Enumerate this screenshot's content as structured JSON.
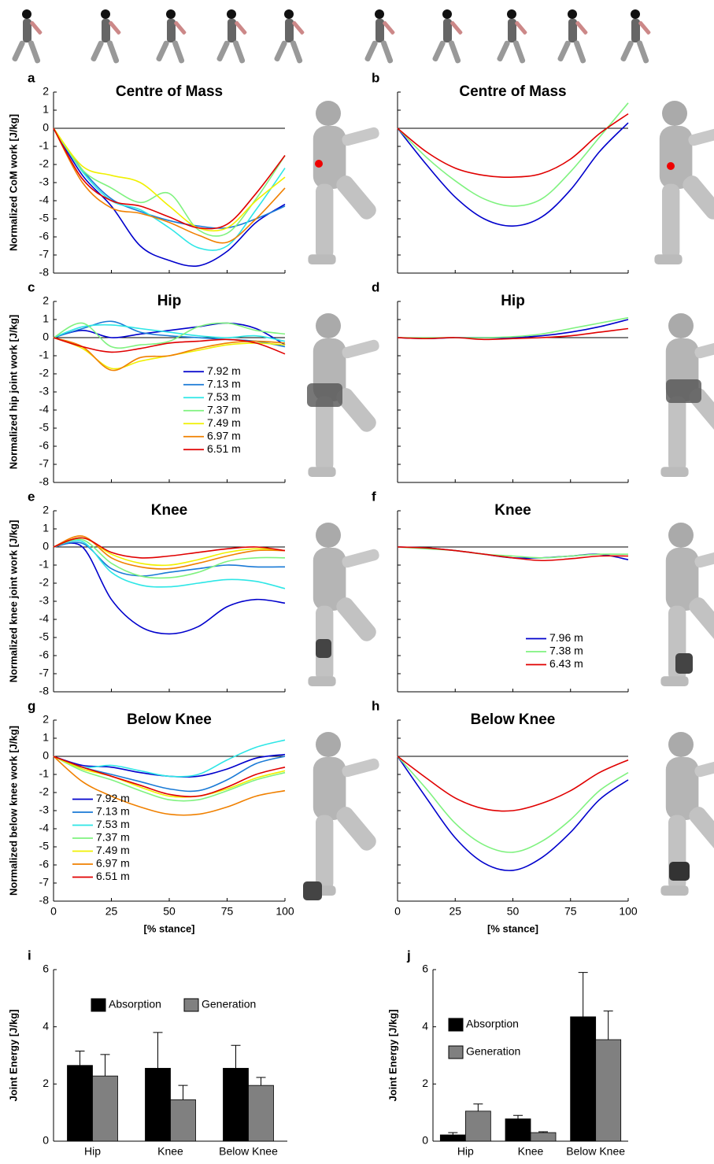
{
  "chart_data": [
    {
      "type": "line",
      "label": "a",
      "title": "Centre of Mass",
      "ylabel": "Normalized CoM work [J/kg]",
      "x": [
        0,
        12.5,
        25,
        37.5,
        50,
        62.5,
        75,
        87.5,
        100
      ],
      "xlim": [
        0,
        100
      ],
      "xticks": [
        0,
        25,
        50,
        75,
        100
      ],
      "xtick_labels": false,
      "ylim": [
        -8,
        2
      ],
      "yticks": [
        -8,
        -7,
        -6,
        -5,
        -4,
        -3,
        -2,
        -1,
        0,
        1,
        2
      ],
      "zero_line": true,
      "series": [
        {
          "color": "#0000cc",
          "values": [
            0,
            -2.6,
            -4.3,
            -6.5,
            -7.3,
            -7.6,
            -6.8,
            -5.2,
            -4.2
          ]
        },
        {
          "color": "#1a7ad6",
          "values": [
            0,
            -2.3,
            -3.9,
            -4.6,
            -5.1,
            -5.4,
            -5.5,
            -5.0,
            -4.3
          ]
        },
        {
          "color": "#2ee6e6",
          "values": [
            0,
            -2.4,
            -4.0,
            -4.5,
            -5.5,
            -6.6,
            -6.5,
            -4.5,
            -2.2
          ]
        },
        {
          "color": "#7ff27f",
          "values": [
            0,
            -2.3,
            -3.3,
            -4.1,
            -3.6,
            -5.6,
            -5.8,
            -3.9,
            -1.5
          ]
        },
        {
          "color": "#f0f000",
          "values": [
            0,
            -2.1,
            -2.6,
            -3.0,
            -4.3,
            -5.5,
            -5.5,
            -4.0,
            -2.7
          ]
        },
        {
          "color": "#f08000",
          "values": [
            0,
            -3.0,
            -4.4,
            -4.7,
            -5.2,
            -5.9,
            -6.3,
            -5.0,
            -3.3
          ]
        },
        {
          "color": "#e00000",
          "values": [
            0,
            -2.8,
            -4.0,
            -4.3,
            -4.9,
            -5.5,
            -5.3,
            -3.6,
            -1.5
          ]
        }
      ]
    },
    {
      "type": "line",
      "label": "b",
      "title": "Centre of Mass",
      "x": [
        0,
        12.5,
        25,
        37.5,
        50,
        62.5,
        75,
        87.5,
        100
      ],
      "xlim": [
        0,
        100
      ],
      "xticks": [
        0,
        25,
        50,
        75,
        100
      ],
      "xtick_labels": false,
      "ylim": [
        -8,
        2
      ],
      "yticks": [
        -8,
        -7,
        -6,
        -5,
        -4,
        -3,
        -2,
        -1,
        0,
        1,
        2
      ],
      "ytick_labels": false,
      "zero_line": true,
      "series": [
        {
          "color": "#0000cc",
          "values": [
            0,
            -2.0,
            -3.8,
            -5.0,
            -5.4,
            -4.9,
            -3.4,
            -1.3,
            0.3
          ]
        },
        {
          "color": "#7ff27f",
          "values": [
            0,
            -1.6,
            -2.9,
            -3.9,
            -4.3,
            -3.9,
            -2.4,
            -0.5,
            1.4
          ]
        },
        {
          "color": "#e00000",
          "values": [
            0,
            -1.3,
            -2.2,
            -2.6,
            -2.7,
            -2.5,
            -1.7,
            -0.3,
            0.8
          ]
        }
      ]
    },
    {
      "type": "line",
      "label": "c",
      "title": "Hip",
      "ylabel": "Normalized hip joint work [J/kg]",
      "x": [
        0,
        12.5,
        25,
        37.5,
        50,
        62.5,
        75,
        87.5,
        100
      ],
      "xlim": [
        0,
        100
      ],
      "xticks": [
        0,
        25,
        50,
        75,
        100
      ],
      "xtick_labels": false,
      "ylim": [
        -8,
        2
      ],
      "yticks": [
        -8,
        -7,
        -6,
        -5,
        -4,
        -3,
        -2,
        -1,
        0,
        1,
        2
      ],
      "zero_line": true,
      "legend": "center",
      "series": [
        {
          "name": "7.92 m",
          "color": "#0000cc",
          "values": [
            0,
            0.4,
            0.0,
            0.2,
            0.4,
            0.6,
            0.8,
            0.5,
            -0.4
          ]
        },
        {
          "name": "7.13 m",
          "color": "#1a7ad6",
          "values": [
            0,
            0.5,
            0.9,
            0.3,
            0.1,
            0.0,
            -0.1,
            -0.2,
            -0.5
          ]
        },
        {
          "name": "7.53 m",
          "color": "#2ee6e6",
          "values": [
            0,
            0.6,
            0.7,
            0.5,
            0.3,
            0.1,
            0.0,
            0.1,
            -0.2
          ]
        },
        {
          "name": "7.37 m",
          "color": "#7ff27f",
          "values": [
            0,
            0.8,
            -0.5,
            -0.4,
            -0.2,
            0.6,
            0.8,
            0.4,
            0.2
          ]
        },
        {
          "name": "7.49 m",
          "color": "#f0f000",
          "values": [
            0,
            -0.6,
            -1.7,
            -1.3,
            -1.0,
            -0.7,
            -0.4,
            -0.3,
            -0.4
          ]
        },
        {
          "name": "6.97 m",
          "color": "#f08000",
          "values": [
            0,
            -0.5,
            -1.8,
            -1.1,
            -1.0,
            -0.6,
            -0.3,
            -0.2,
            -0.3
          ]
        },
        {
          "name": "6.51 m",
          "color": "#e00000",
          "values": [
            0,
            -0.5,
            -0.8,
            -0.6,
            -0.3,
            -0.2,
            -0.1,
            -0.3,
            -0.9
          ]
        }
      ]
    },
    {
      "type": "line",
      "label": "d",
      "title": "Hip",
      "x": [
        0,
        12.5,
        25,
        37.5,
        50,
        62.5,
        75,
        87.5,
        100
      ],
      "xlim": [
        0,
        100
      ],
      "xticks": [
        0,
        25,
        50,
        75,
        100
      ],
      "xtick_labels": false,
      "ylim": [
        -8,
        2
      ],
      "yticks": [
        -8,
        -7,
        -6,
        -5,
        -4,
        -3,
        -2,
        -1,
        0,
        1,
        2
      ],
      "ytick_labels": false,
      "zero_line": true,
      "series": [
        {
          "color": "#0000cc",
          "values": [
            0,
            -0.05,
            0,
            0,
            0,
            0.1,
            0.3,
            0.6,
            1.0
          ]
        },
        {
          "color": "#7ff27f",
          "values": [
            0,
            0,
            0,
            0,
            0.05,
            0.2,
            0.5,
            0.8,
            1.1
          ]
        },
        {
          "color": "#e00000",
          "values": [
            0,
            -0.05,
            0,
            -0.1,
            -0.05,
            0,
            0.1,
            0.3,
            0.5
          ]
        }
      ]
    },
    {
      "type": "line",
      "label": "e",
      "title": "Knee",
      "ylabel": "Normalized knee joint work [J/kg]",
      "x": [
        0,
        12.5,
        25,
        37.5,
        50,
        62.5,
        75,
        87.5,
        100
      ],
      "xlim": [
        0,
        100
      ],
      "xticks": [
        0,
        25,
        50,
        75,
        100
      ],
      "xtick_labels": false,
      "ylim": [
        -8,
        2
      ],
      "yticks": [
        -8,
        -7,
        -6,
        -5,
        -4,
        -3,
        -2,
        -1,
        0,
        1,
        2
      ],
      "zero_line": true,
      "series": [
        {
          "color": "#0000cc",
          "values": [
            0,
            0,
            -2.9,
            -4.4,
            -4.8,
            -4.4,
            -3.3,
            -2.9,
            -3.1
          ]
        },
        {
          "color": "#1a7ad6",
          "values": [
            0,
            0.2,
            -1.2,
            -1.6,
            -1.4,
            -1.2,
            -1.0,
            -1.1,
            -1.1
          ]
        },
        {
          "color": "#2ee6e6",
          "values": [
            0,
            0.3,
            -1.4,
            -2.1,
            -2.2,
            -2.0,
            -1.8,
            -1.9,
            -2.3
          ]
        },
        {
          "color": "#7ff27f",
          "values": [
            0,
            0.4,
            -0.9,
            -1.6,
            -1.7,
            -1.4,
            -0.8,
            -0.6,
            -0.6
          ]
        },
        {
          "color": "#f0f000",
          "values": [
            0,
            0.5,
            -0.4,
            -0.9,
            -1.0,
            -0.7,
            -0.3,
            -0.1,
            -0.2
          ]
        },
        {
          "color": "#f08000",
          "values": [
            0,
            0.6,
            -0.6,
            -1.1,
            -1.2,
            -0.9,
            -0.5,
            -0.2,
            -0.2
          ]
        },
        {
          "color": "#e00000",
          "values": [
            0,
            0.5,
            -0.3,
            -0.6,
            -0.5,
            -0.3,
            -0.1,
            0,
            -0.2
          ]
        }
      ]
    },
    {
      "type": "line",
      "label": "f",
      "title": "Knee",
      "x": [
        0,
        12.5,
        25,
        37.5,
        50,
        62.5,
        75,
        87.5,
        100
      ],
      "xlim": [
        0,
        100
      ],
      "xticks": [
        0,
        25,
        50,
        75,
        100
      ],
      "xtick_labels": false,
      "ylim": [
        -8,
        2
      ],
      "yticks": [
        -8,
        -7,
        -6,
        -5,
        -4,
        -3,
        -2,
        -1,
        0,
        1,
        2
      ],
      "ytick_labels": false,
      "zero_line": true,
      "legend": "lower right",
      "series": [
        {
          "name": "7.96 m",
          "color": "#0000cc",
          "values": [
            0,
            -0.05,
            -0.2,
            -0.4,
            -0.6,
            -0.6,
            -0.5,
            -0.4,
            -0.7
          ]
        },
        {
          "name": "7.38 m",
          "color": "#7ff27f",
          "values": [
            0,
            -0.1,
            -0.2,
            -0.4,
            -0.5,
            -0.6,
            -0.5,
            -0.4,
            -0.4
          ]
        },
        {
          "name": "6.43 m",
          "color": "#e00000",
          "values": [
            0,
            -0.05,
            -0.2,
            -0.4,
            -0.6,
            -0.75,
            -0.65,
            -0.5,
            -0.5
          ]
        }
      ]
    },
    {
      "type": "line",
      "label": "g",
      "title": "Below Knee",
      "ylabel": "Normalized below knee work [J/kg]",
      "xlabel": "[% stance]",
      "x": [
        0,
        12.5,
        25,
        37.5,
        50,
        62.5,
        75,
        87.5,
        100
      ],
      "xlim": [
        0,
        100
      ],
      "xticks": [
        0,
        25,
        50,
        75,
        100
      ],
      "ylim": [
        -8,
        2
      ],
      "yticks": [
        -8,
        -7,
        -6,
        -5,
        -4,
        -3,
        -2,
        -1,
        0,
        1,
        2
      ],
      "zero_line": true,
      "legend": "lower left",
      "series": [
        {
          "name": "7.92 m",
          "color": "#0000cc",
          "values": [
            0,
            -0.5,
            -0.6,
            -0.9,
            -1.1,
            -1.1,
            -0.7,
            -0.1,
            0.1
          ]
        },
        {
          "name": "7.13 m",
          "color": "#1a7ad6",
          "values": [
            0,
            -0.6,
            -1.0,
            -1.4,
            -1.8,
            -1.9,
            -1.3,
            -0.4,
            0.0
          ]
        },
        {
          "name": "7.53 m",
          "color": "#2ee6e6",
          "values": [
            0,
            -0.6,
            -0.5,
            -0.8,
            -1.1,
            -1.0,
            -0.2,
            0.5,
            0.9
          ]
        },
        {
          "name": "7.37 m",
          "color": "#7ff27f",
          "values": [
            0,
            -0.8,
            -1.3,
            -1.9,
            -2.4,
            -2.4,
            -1.9,
            -1.3,
            -0.9
          ]
        },
        {
          "name": "7.49 m",
          "color": "#f0f000",
          "values": [
            0,
            -0.7,
            -1.1,
            -1.7,
            -2.2,
            -2.2,
            -1.8,
            -1.2,
            -0.8
          ]
        },
        {
          "name": "6.97 m",
          "color": "#f08000",
          "values": [
            0,
            -1.4,
            -2.2,
            -2.8,
            -3.2,
            -3.2,
            -2.8,
            -2.2,
            -1.9
          ]
        },
        {
          "name": "6.51 m",
          "color": "#e00000",
          "values": [
            0,
            -0.6,
            -1.1,
            -1.6,
            -2.1,
            -2.2,
            -1.7,
            -1.0,
            -0.6
          ]
        }
      ]
    },
    {
      "type": "line",
      "label": "h",
      "title": "Below Knee",
      "xlabel": "[% stance]",
      "x": [
        0,
        12.5,
        25,
        37.5,
        50,
        62.5,
        75,
        87.5,
        100
      ],
      "xlim": [
        0,
        100
      ],
      "xticks": [
        0,
        25,
        50,
        75,
        100
      ],
      "ylim": [
        -8,
        2
      ],
      "yticks": [
        -8,
        -7,
        -6,
        -5,
        -4,
        -3,
        -2,
        -1,
        0,
        1,
        2
      ],
      "ytick_labels": false,
      "zero_line": true,
      "series": [
        {
          "color": "#0000cc",
          "values": [
            0,
            -2.3,
            -4.5,
            -5.9,
            -6.3,
            -5.6,
            -4.2,
            -2.4,
            -1.3
          ]
        },
        {
          "color": "#7ff27f",
          "values": [
            0,
            -1.8,
            -3.7,
            -4.9,
            -5.3,
            -4.7,
            -3.5,
            -1.9,
            -0.9
          ]
        },
        {
          "color": "#e00000",
          "values": [
            0,
            -1.2,
            -2.3,
            -2.9,
            -3.0,
            -2.6,
            -1.9,
            -0.9,
            -0.2
          ]
        }
      ]
    },
    {
      "type": "bar",
      "label": "i",
      "ylabel": "Joint Energy [J/kg]",
      "categories": [
        "Hip",
        "Knee",
        "Below Knee"
      ],
      "ylim": [
        0,
        6
      ],
      "yticks": [
        0,
        2,
        4,
        6
      ],
      "legend": "upper center",
      "series": [
        {
          "name": "Absorption",
          "color": "#000000",
          "values": [
            2.65,
            2.55,
            2.55
          ],
          "errors": [
            0.5,
            1.25,
            0.8
          ]
        },
        {
          "name": "Generation",
          "color": "#808080",
          "values": [
            2.28,
            1.45,
            1.95
          ],
          "errors": [
            0.75,
            0.5,
            0.28
          ]
        }
      ]
    },
    {
      "type": "bar",
      "label": "j",
      "ylabel": "Joint Energy [J/kg]",
      "categories": [
        "Hip",
        "Knee",
        "Below Knee"
      ],
      "ylim": [
        0,
        6
      ],
      "yticks": [
        0,
        2,
        4,
        6
      ],
      "legend": "upper left",
      "series": [
        {
          "name": "Absorption",
          "color": "#000000",
          "values": [
            0.22,
            0.78,
            4.35
          ],
          "errors": [
            0.08,
            0.12,
            1.55
          ]
        },
        {
          "name": "Generation",
          "color": "#808080",
          "values": [
            1.05,
            0.3,
            3.55
          ],
          "errors": [
            0.25,
            0.03,
            1.0
          ]
        }
      ]
    }
  ]
}
